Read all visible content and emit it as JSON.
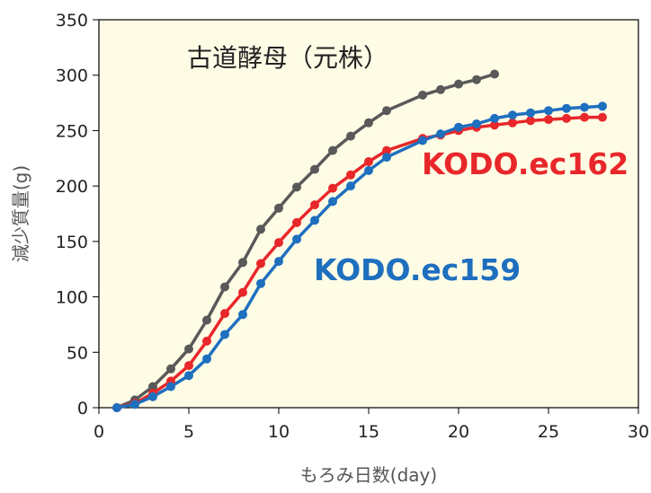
{
  "chart_data": {
    "type": "line",
    "title": "",
    "xlabel": "もろみ日数(day)",
    "ylabel": "減少質量(g)",
    "xlim": [
      0,
      30
    ],
    "ylim": [
      0,
      350
    ],
    "xticks": [
      0,
      5,
      10,
      15,
      20,
      25,
      30
    ],
    "yticks": [
      0,
      50,
      100,
      150,
      200,
      250,
      300,
      350
    ],
    "grid": false,
    "plot_background": "#FFFCE6",
    "series": [
      {
        "name": "古道酵母（元株）",
        "color": "#595959",
        "x": [
          1,
          2,
          3,
          4,
          5,
          6,
          7,
          8,
          9,
          10,
          11,
          12,
          13,
          14,
          15,
          16,
          18,
          19,
          20,
          21,
          22
        ],
        "y": [
          0,
          7,
          19,
          35,
          53,
          79,
          109,
          131,
          161,
          180,
          199,
          215,
          232,
          245,
          257,
          268,
          282,
          287,
          292,
          296,
          301
        ]
      },
      {
        "name": "KODO.ec162",
        "color": "#E8272A",
        "x": [
          1,
          2,
          3,
          4,
          5,
          6,
          7,
          8,
          9,
          10,
          11,
          12,
          13,
          14,
          15,
          16,
          18,
          19,
          20,
          21,
          22,
          23,
          24,
          25,
          26,
          27,
          28
        ],
        "y": [
          0,
          4,
          13,
          24,
          38,
          60,
          85,
          104,
          130,
          149,
          167,
          183,
          198,
          210,
          222,
          232,
          243,
          246,
          250,
          253,
          255,
          257,
          259,
          260,
          261,
          262,
          262
        ]
      },
      {
        "name": "KODO.ec159",
        "color": "#1F6FBF",
        "x": [
          1,
          2,
          3,
          4,
          5,
          6,
          7,
          8,
          9,
          10,
          11,
          12,
          13,
          14,
          15,
          16,
          18,
          19,
          20,
          21,
          22,
          23,
          24,
          25,
          26,
          27,
          28
        ],
        "y": [
          0,
          3,
          10,
          19,
          29,
          44,
          66,
          84,
          112,
          132,
          152,
          169,
          186,
          200,
          214,
          226,
          241,
          247,
          253,
          256,
          261,
          264,
          266,
          268,
          270,
          271,
          272
        ]
      }
    ]
  }
}
